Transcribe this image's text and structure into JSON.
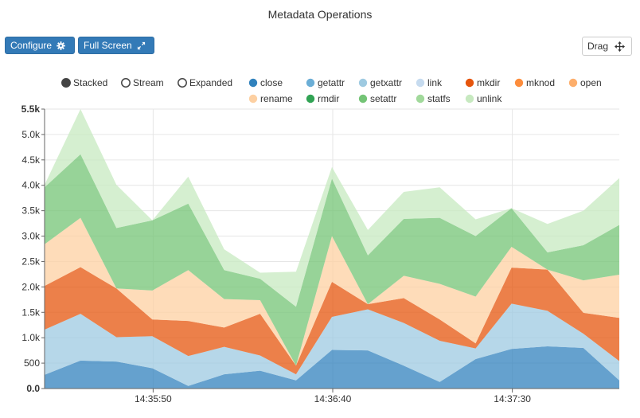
{
  "header": {
    "title": "Metadata Operations"
  },
  "toolbar": {
    "configure_label": "Configure",
    "configure_icon": "gear-icon",
    "fullscreen_label": "Full Screen",
    "fullscreen_icon": "expand-icon",
    "drag_label": "Drag",
    "drag_icon": "move-arrows-icon"
  },
  "controls": {
    "modes": [
      {
        "label": "Stacked",
        "selected": true
      },
      {
        "label": "Stream",
        "selected": false
      },
      {
        "label": "Expanded",
        "selected": false
      }
    ]
  },
  "chart_data": {
    "type": "area",
    "stacked": true,
    "title": "Metadata Operations",
    "xlabel": "",
    "ylabel": "",
    "ylim": [
      0,
      5500
    ],
    "yticks": [
      "0.0",
      "500",
      "1.0k",
      "1.5k",
      "2.0k",
      "2.5k",
      "3.0k",
      "3.5k",
      "4.0k",
      "4.5k",
      "5.0k",
      "5.5k"
    ],
    "xticks": [
      "14:35:50",
      "14:36:40",
      "14:37:30"
    ],
    "grid": true,
    "legend_position": "top",
    "series": [
      {
        "name": "close",
        "color": "#3182bd",
        "values": [
          270,
          550,
          530,
          400,
          50,
          280,
          350,
          160,
          760,
          750,
          450,
          130,
          580,
          780,
          830,
          800,
          160
        ]
      },
      {
        "name": "getattr",
        "color": "#6baed6",
        "values": [
          0,
          0,
          0,
          0,
          0,
          0,
          0,
          0,
          0,
          0,
          0,
          0,
          0,
          0,
          0,
          0,
          0
        ]
      },
      {
        "name": "getxattr",
        "color": "#9ecae1",
        "values": [
          890,
          920,
          480,
          630,
          590,
          540,
          300,
          120,
          650,
          810,
          840,
          810,
          210,
          890,
          700,
          280,
          380
        ]
      },
      {
        "name": "link",
        "color": "#c6dbef",
        "values": [
          0,
          0,
          0,
          0,
          0,
          0,
          0,
          0,
          0,
          0,
          0,
          0,
          0,
          0,
          0,
          0,
          0
        ]
      },
      {
        "name": "mkdir",
        "color": "#e6550d",
        "values": [
          860,
          920,
          960,
          330,
          690,
          380,
          820,
          170,
          690,
          100,
          490,
          420,
          100,
          710,
          810,
          410,
          850
        ]
      },
      {
        "name": "mknod",
        "color": "#fd8d3c",
        "values": [
          0,
          0,
          0,
          0,
          0,
          0,
          0,
          0,
          0,
          0,
          0,
          0,
          0,
          0,
          0,
          0,
          0
        ]
      },
      {
        "name": "open",
        "color": "#fdae6b",
        "values": [
          0,
          0,
          0,
          0,
          0,
          0,
          0,
          0,
          0,
          0,
          0,
          0,
          0,
          0,
          0,
          0,
          0
        ]
      },
      {
        "name": "rename",
        "color": "#fdd0a2",
        "values": [
          820,
          970,
          0,
          570,
          1000,
          560,
          270,
          0,
          900,
          0,
          440,
          700,
          920,
          410,
          0,
          640,
          850
        ]
      },
      {
        "name": "rmdir",
        "color": "#31a354",
        "values": [
          0,
          0,
          0,
          0,
          0,
          0,
          0,
          0,
          0,
          0,
          0,
          0,
          0,
          0,
          0,
          0,
          0
        ]
      },
      {
        "name": "setattr",
        "color": "#74c476",
        "values": [
          1120,
          1250,
          1190,
          1380,
          1310,
          570,
          420,
          1160,
          1130,
          960,
          1120,
          1300,
          1190,
          760,
          340,
          690,
          980
        ]
      },
      {
        "name": "statfs",
        "color": "#a1d99b",
        "values": [
          0,
          0,
          0,
          0,
          0,
          0,
          0,
          0,
          0,
          0,
          0,
          0,
          0,
          0,
          0,
          0,
          0
        ]
      },
      {
        "name": "unlink",
        "color": "#c7e9c0",
        "values": [
          50,
          890,
          850,
          0,
          530,
          410,
          120,
          690,
          230,
          500,
          530,
          600,
          330,
          0,
          560,
          680,
          920
        ]
      }
    ]
  }
}
